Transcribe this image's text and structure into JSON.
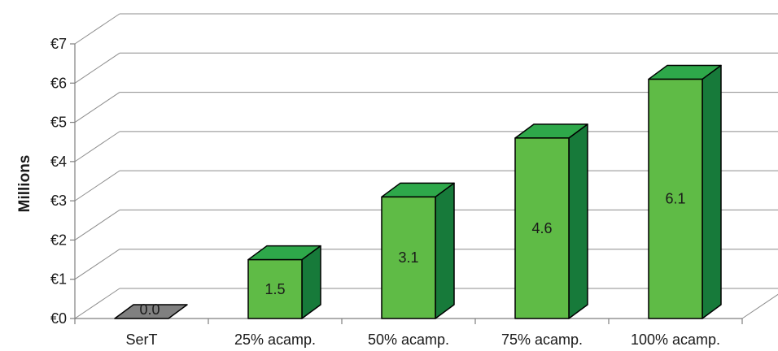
{
  "chart_data": {
    "type": "bar",
    "categories": [
      "SerT",
      "25% acamp.",
      "50% acamp.",
      "75% acamp.",
      "100% acamp."
    ],
    "values": [
      0.0,
      1.5,
      3.1,
      4.6,
      6.1
    ],
    "data_labels": [
      "0.0",
      "1.5",
      "3.1",
      "4.6",
      "6.1"
    ],
    "ylabel": "Millions",
    "xlabel": "",
    "title": "",
    "ylim": [
      0,
      7
    ],
    "yticks": [
      0,
      1,
      2,
      3,
      4,
      5,
      6,
      7
    ],
    "ytick_labels": [
      "€0",
      "€1",
      "€2",
      "€3",
      "€4",
      "€5",
      "€6",
      "€7"
    ],
    "grid": true,
    "style": "3d-column",
    "colors": {
      "front": "#5fbb46",
      "top": "#2ea84a",
      "side": "#177a3a",
      "zero_front": "#7a7a7a",
      "zero_top": "#808080",
      "grid": "#8c8c8c"
    }
  }
}
